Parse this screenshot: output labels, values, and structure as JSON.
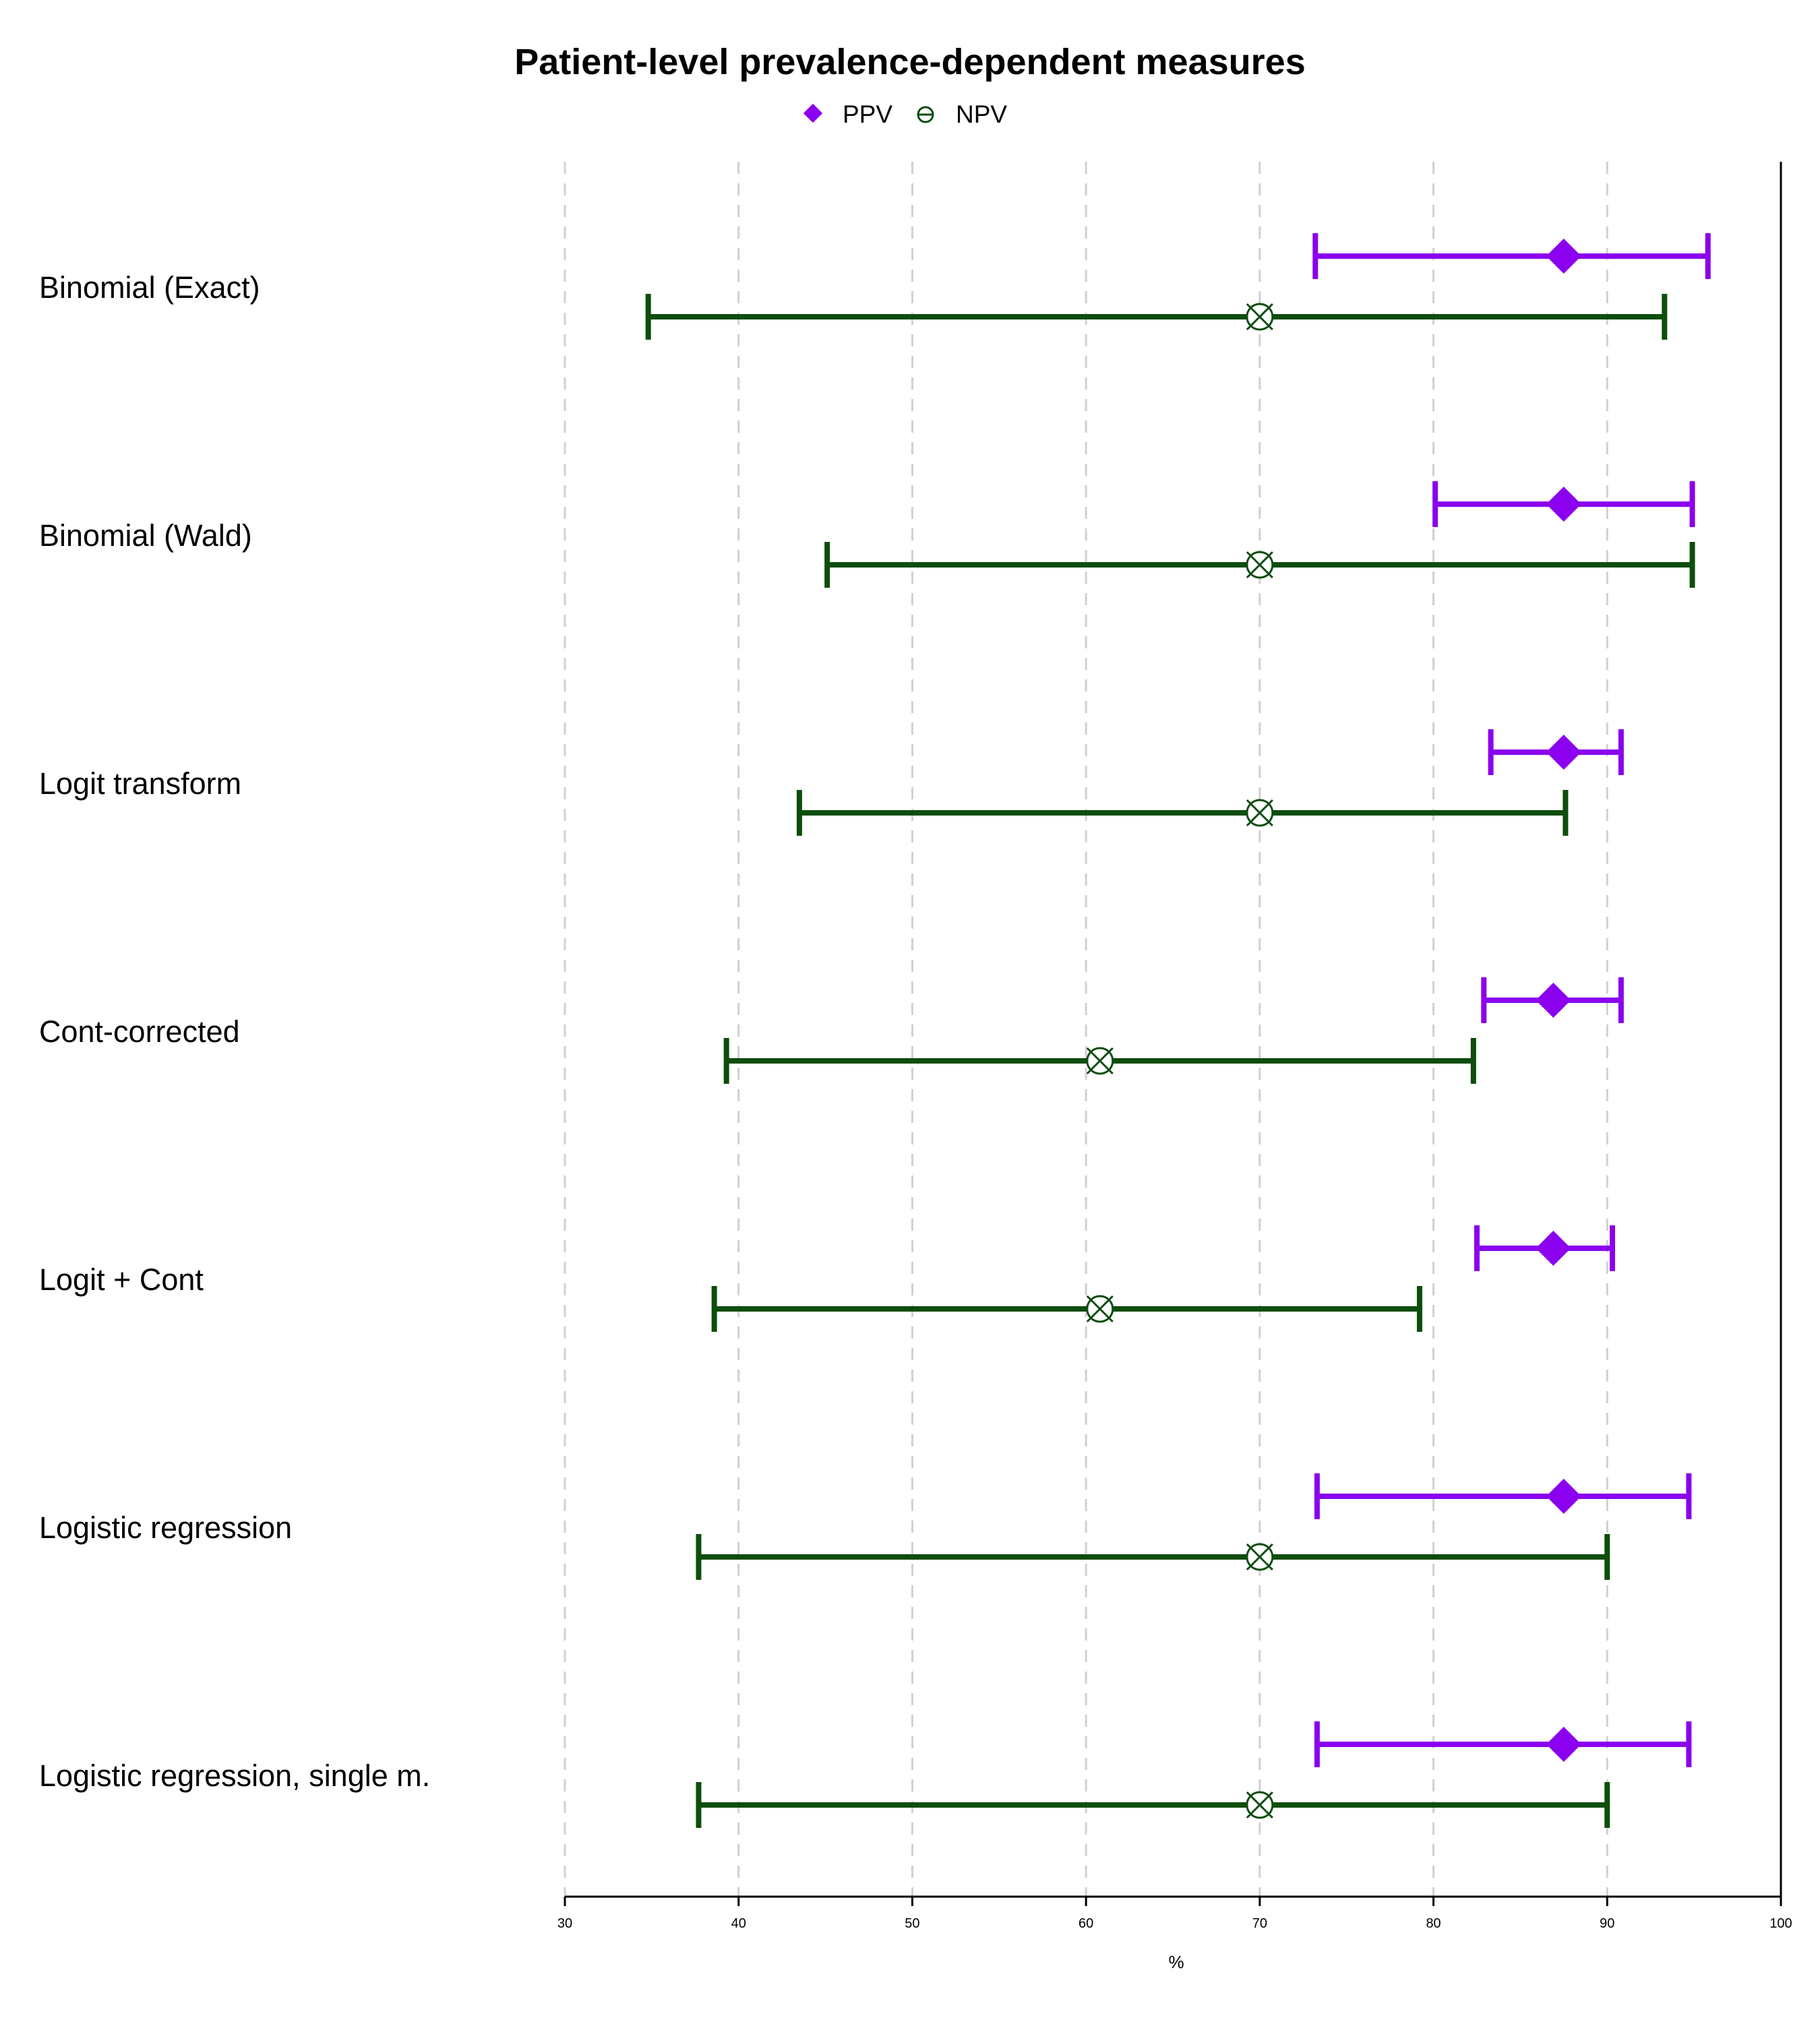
{
  "chart_data": {
    "type": "forest",
    "title": "Patient-level prevalence-dependent measures",
    "xlabel": "%",
    "xlim": [
      30,
      100
    ],
    "xticks": [
      "30",
      "40",
      "50",
      "60",
      "70",
      "80",
      "90",
      "100"
    ],
    "grid": "vertical dashed",
    "legend_position": "top",
    "categories": [
      "Binomial (Exact)",
      "Binomial (Wald)",
      "Logit transform",
      "Cont-corrected",
      "Logit + Cont",
      "Logistic regression",
      "Logistic regression, single m."
    ],
    "series": [
      {
        "name": "PPV",
        "color": "#8b00ee",
        "marker": "filled-diamond",
        "points": [
          {
            "estimate": 87.5,
            "lower": 73.2,
            "upper": 95.8
          },
          {
            "estimate": 87.5,
            "lower": 80.1,
            "upper": 94.9
          },
          {
            "estimate": 87.5,
            "lower": 83.3,
            "upper": 90.8
          },
          {
            "estimate": 86.9,
            "lower": 82.9,
            "upper": 90.8
          },
          {
            "estimate": 86.9,
            "lower": 82.5,
            "upper": 90.3
          },
          {
            "estimate": 87.5,
            "lower": 73.3,
            "upper": 94.7
          },
          {
            "estimate": 87.5,
            "lower": 73.3,
            "upper": 94.7
          }
        ]
      },
      {
        "name": "NPV",
        "color": "#0d4d0d",
        "marker": "crossed-circle",
        "points": [
          {
            "estimate": 70.0,
            "lower": 34.8,
            "upper": 93.3
          },
          {
            "estimate": 70.0,
            "lower": 45.1,
            "upper": 94.9
          },
          {
            "estimate": 70.0,
            "lower": 43.5,
            "upper": 87.6
          },
          {
            "estimate": 60.8,
            "lower": 39.3,
            "upper": 82.3
          },
          {
            "estimate": 60.8,
            "lower": 38.6,
            "upper": 79.2
          },
          {
            "estimate": 70.0,
            "lower": 37.7,
            "upper": 90.0
          },
          {
            "estimate": 70.0,
            "lower": 37.7,
            "upper": 90.0
          }
        ]
      }
    ]
  }
}
